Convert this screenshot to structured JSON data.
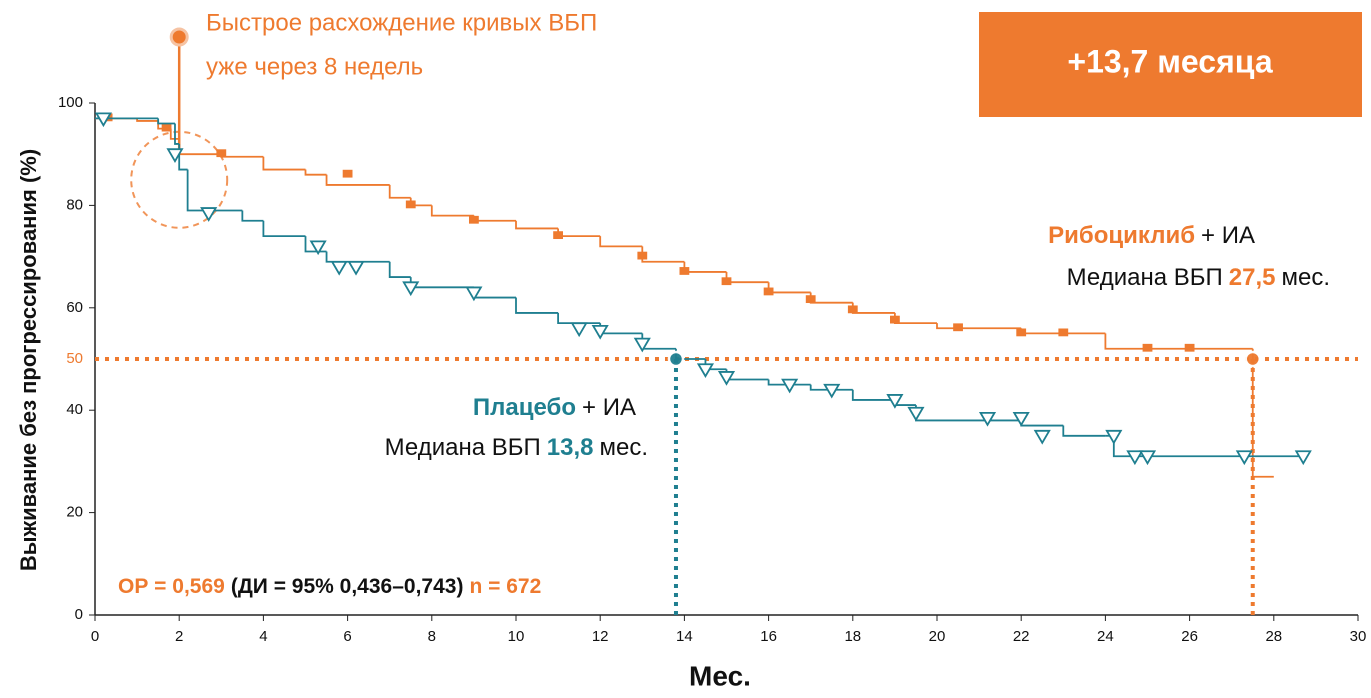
{
  "chart_data": {
    "type": "step",
    "xlabel": "Мес.",
    "ylabel": "Выживание без прогрессирования (%)",
    "xlim": [
      0,
      30
    ],
    "ylim": [
      0,
      100
    ],
    "xticks": [
      0,
      2,
      4,
      6,
      8,
      10,
      12,
      14,
      16,
      18,
      20,
      22,
      24,
      26,
      28,
      30
    ],
    "yticks": [
      0,
      20,
      40,
      60,
      80,
      100
    ],
    "ref_line": 50,
    "headline": "+13,7 месяца",
    "early_note": [
      "Быстрое расхождение кривых ВБП",
      "уже через 8 недель"
    ],
    "early_x": 2,
    "stats": {
      "hr": "ОР = 0,569",
      "ci": "(ДИ = 95% 0,436–0,743)",
      "n": "n = 672"
    },
    "series": [
      {
        "name": "Рибоциклиб",
        "suffix": "+ ИА",
        "color": "#ee7a2f",
        "marker": "square",
        "median_text": "Медиана ВБП",
        "median": 27.5,
        "median_label": "27,5",
        "median_unit": "мес.",
        "x": [
          0,
          1,
          1.5,
          1.8,
          2,
          3,
          4,
          5,
          5.5,
          7,
          7.5,
          8,
          9,
          10,
          11,
          12,
          13,
          14,
          15,
          16,
          17,
          18,
          19,
          20,
          22,
          24,
          26,
          27.5,
          28
        ],
        "y": [
          97,
          96.5,
          95,
          93,
          90,
          89.5,
          87,
          86,
          84,
          81.5,
          80,
          78,
          77,
          75.5,
          74,
          72,
          69,
          67,
          65,
          63,
          61,
          59,
          57,
          56,
          55,
          52,
          52,
          27,
          27
        ],
        "censor_x": [
          0.3,
          1.7,
          3,
          6,
          7.5,
          9,
          11,
          13,
          14,
          15,
          16,
          17,
          18,
          19,
          20.5,
          22,
          23,
          25,
          26
        ],
        "censor_y": [
          97,
          95,
          90,
          86,
          80,
          77,
          74,
          70,
          67,
          65,
          63,
          61.5,
          59.5,
          57.5,
          56,
          55,
          55,
          52,
          52
        ]
      },
      {
        "name": "Плацебо",
        "suffix": "+ ИА",
        "color": "#1f7f90",
        "marker": "triangle",
        "median_text": "Медиана ВБП",
        "median": 13.8,
        "median_label": "13,8",
        "median_unit": "мес.",
        "x": [
          0,
          1.5,
          1.9,
          2,
          2.2,
          3.5,
          4,
          5,
          5.5,
          7,
          7.5,
          9,
          10,
          11,
          12,
          13,
          13.8,
          14.5,
          15,
          16,
          17,
          18,
          19,
          19.5,
          22,
          23,
          24,
          24.2,
          28.7
        ],
        "y": [
          97,
          96,
          92,
          87,
          79,
          77,
          74,
          71,
          69,
          66,
          64,
          62,
          59,
          57,
          55,
          52,
          50,
          48,
          46,
          45,
          44,
          42,
          41,
          38,
          37,
          35,
          35,
          31,
          31
        ],
        "censor_x": [
          0.2,
          1.9,
          2.7,
          5.3,
          5.8,
          6.2,
          7.5,
          9,
          11.5,
          12,
          13,
          14.5,
          15,
          16.5,
          17.5,
          19,
          19.5,
          21.2,
          22,
          22.5,
          24.2,
          24.7,
          25,
          27.3,
          28.7
        ],
        "censor_y": [
          97,
          90,
          78.5,
          72,
          68,
          68,
          64,
          63,
          56,
          55.5,
          53,
          48,
          46.5,
          45,
          44,
          42,
          39.5,
          38.5,
          38.5,
          35,
          35,
          31,
          31,
          31,
          31
        ]
      }
    ]
  }
}
